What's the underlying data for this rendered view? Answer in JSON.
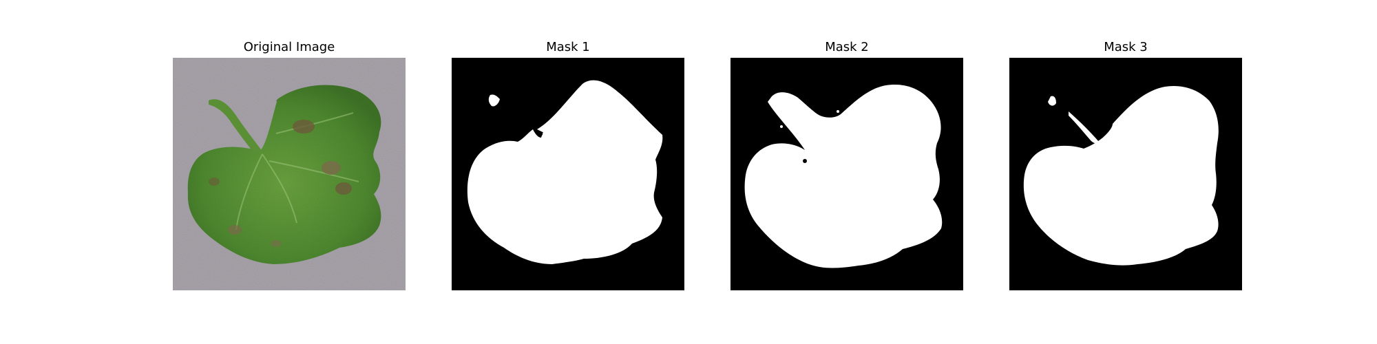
{
  "figure": {
    "panels": [
      {
        "title": "Original Image",
        "icon": "leaf-photo"
      },
      {
        "title": "Mask 1",
        "icon": "binary-mask"
      },
      {
        "title": "Mask 2",
        "icon": "binary-mask"
      },
      {
        "title": "Mask 3",
        "icon": "binary-mask"
      }
    ],
    "colors": {
      "mask_background": "#000000",
      "mask_foreground": "#ffffff",
      "leaf_green": "#4f8a30",
      "photo_background": "#a9a4ab"
    }
  }
}
